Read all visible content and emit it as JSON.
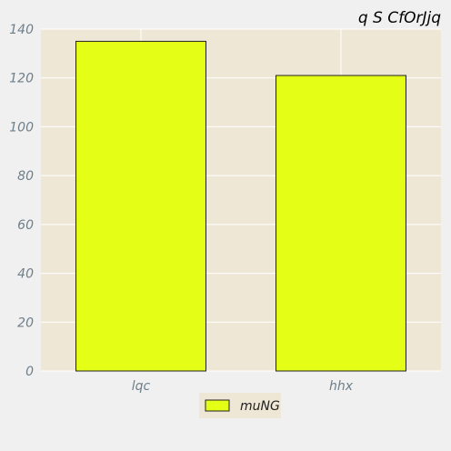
{
  "chart_data": {
    "type": "bar",
    "title": "q S CfOrJjq",
    "xlabel": "",
    "ylabel": "",
    "categories": [
      "lqc",
      "hhx"
    ],
    "series": [
      {
        "name": "muNG",
        "values": [
          135,
          121
        ]
      }
    ],
    "ylim": [
      0,
      140
    ],
    "yticks": [
      0,
      20,
      40,
      60,
      80,
      100,
      120,
      140
    ],
    "grid": true,
    "legend_position": "bottom-center",
    "colors": {
      "bar_fill": "#e4ff15",
      "bar_stroke": "#222222",
      "plot_background": "#efe7d6",
      "legend_background": "#efe7d6",
      "grid": "#ffffff",
      "tick_text": "#6f7f8a",
      "page_background": "#f0f0f0"
    }
  }
}
